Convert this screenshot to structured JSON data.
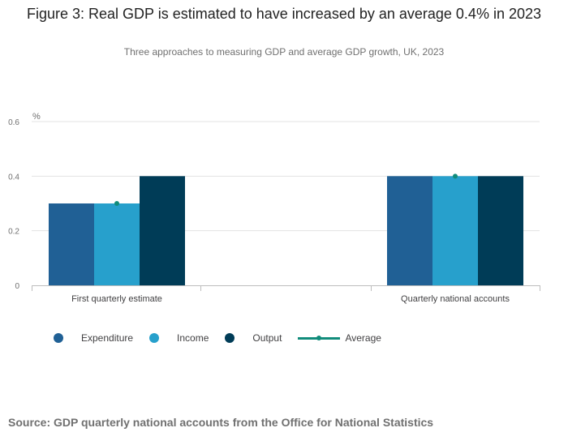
{
  "header": {
    "title": "Figure 3: Real GDP is estimated to have increased by an average 0.4% in 2023",
    "subtitle": "Three approaches to measuring GDP and average GDP growth, UK, 2023"
  },
  "footer": {
    "source": "Source: GDP quarterly national accounts from the Office for National Statistics"
  },
  "chart_data": {
    "type": "bar",
    "title": "Figure 3: Real GDP is estimated to have increased by an average 0.4% in 2023",
    "subtitle": "Three approaches to measuring GDP and average GDP growth, UK, 2023",
    "ylabel": "%",
    "xlabel": "",
    "ylim": [
      0,
      0.6
    ],
    "yticks": [
      0,
      0.2,
      0.4,
      0.6
    ],
    "ytick_labels": [
      "0",
      "0.2",
      "0.4",
      "0.6"
    ],
    "grid": true,
    "legend_position": "bottom-left",
    "categories": [
      "First quarterly estimate",
      "Quarterly national accounts"
    ],
    "series": [
      {
        "name": "Expenditure",
        "kind": "bar",
        "color": "#206095",
        "values": [
          0.3,
          0.4
        ]
      },
      {
        "name": "Income",
        "kind": "bar",
        "color": "#27a0cc",
        "values": [
          0.3,
          0.4
        ]
      },
      {
        "name": "Output",
        "kind": "bar",
        "color": "#003c57",
        "values": [
          0.4,
          0.4
        ]
      },
      {
        "name": "Average",
        "kind": "line-marker",
        "color": "#118c7b",
        "values": [
          0.3,
          0.4
        ]
      }
    ]
  }
}
